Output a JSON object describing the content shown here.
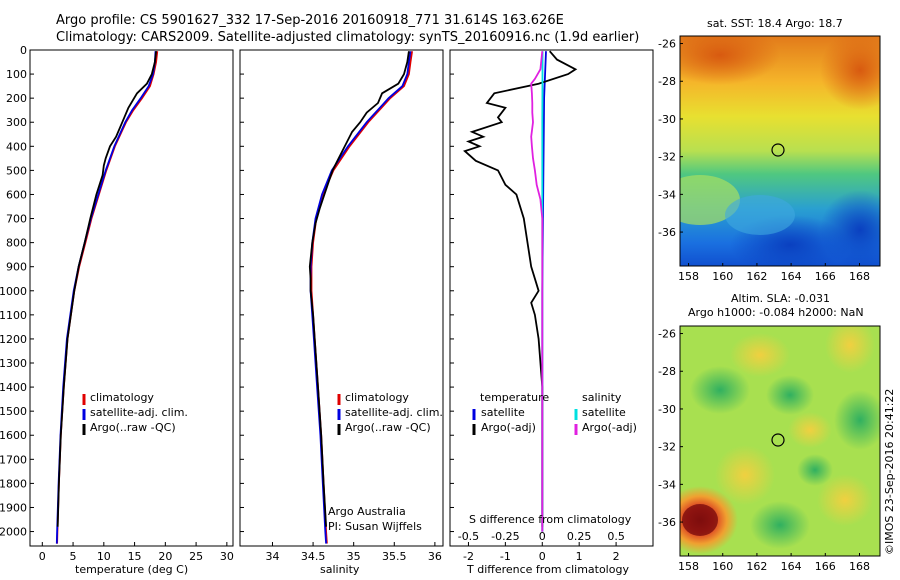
{
  "header": {
    "line1": "Argo profile: CS 5901627_332 17-Sep-2016 20160918_771 31.614S 163.626E",
    "line2": "Climatology: CARS2009. Satellite-adjusted climatology: synTS_20160916.nc (1.9d earlier)"
  },
  "credit": "©IMOS 23-Sep-2016 20:41:22",
  "colors": {
    "climatology": "#e00000",
    "satellite": "#0000e0",
    "argo": "#000000",
    "sal_satellite": "#00e0e0",
    "sal_argo": "#e020e0"
  },
  "chart_data": [
    {
      "type": "line",
      "xlabel": "temperature (deg C)",
      "ylabel": "",
      "xlim": [
        -2,
        31
      ],
      "ylim": [
        2060,
        0
      ],
      "xticks": [
        "0",
        "5",
        "10",
        "15",
        "20",
        "25",
        "30"
      ],
      "yticks": [
        "0",
        "100",
        "200",
        "300",
        "400",
        "500",
        "600",
        "700",
        "800",
        "900",
        "1000",
        "1100",
        "1200",
        "1300",
        "1400",
        "1500",
        "1600",
        "1700",
        "1800",
        "1900",
        "2000"
      ],
      "legend": [
        "climatology",
        "satellite-adj. clim.",
        "Argo(..raw -QC)"
      ],
      "series": [
        {
          "name": "climatology",
          "depth": [
            5,
            50,
            100,
            150,
            200,
            250,
            300,
            400,
            500,
            600,
            700,
            800,
            900,
            1000,
            1200,
            1400,
            1600,
            1800,
            2000,
            2050
          ],
          "values": [
            18.7,
            18.5,
            18.1,
            17.5,
            16.2,
            14.8,
            13.6,
            11.8,
            10.4,
            9.2,
            8.0,
            7.0,
            6.0,
            5.2,
            4.1,
            3.5,
            3.0,
            2.7,
            2.45,
            2.4
          ]
        },
        {
          "name": "satellite-adj. clim.",
          "depth": [
            5,
            50,
            100,
            150,
            200,
            250,
            300,
            400,
            500,
            600,
            700,
            800,
            900,
            1000,
            1200,
            1400,
            1600,
            1800,
            2000,
            2050
          ],
          "values": [
            18.4,
            18.3,
            18.0,
            17.3,
            16.0,
            14.6,
            13.5,
            11.7,
            10.3,
            9.1,
            7.9,
            6.9,
            5.9,
            5.1,
            4.0,
            3.4,
            2.95,
            2.65,
            2.4,
            2.35
          ]
        },
        {
          "name": "Argo(..raw -QC)",
          "depth": [
            5,
            50,
            100,
            140,
            180,
            240,
            300,
            360,
            400,
            450,
            480,
            520,
            600,
            700,
            800,
            900,
            1000,
            1200,
            1400,
            1600,
            1800,
            1980
          ],
          "values": [
            18.5,
            18.3,
            17.8,
            17.0,
            15.4,
            14.0,
            13.0,
            12.0,
            11.0,
            10.3,
            10.0,
            9.8,
            8.8,
            7.8,
            6.9,
            5.9,
            5.2,
            4.1,
            3.5,
            3.0,
            2.7,
            2.5
          ]
        }
      ]
    },
    {
      "type": "line",
      "xlabel": "salinity",
      "ylabel": "",
      "xlim": [
        33.6,
        36.1
      ],
      "ylim": [
        2060,
        0
      ],
      "xticks": [
        "34",
        "34.5",
        "35",
        "35.5",
        "36"
      ],
      "legend": [
        "climatology",
        "satellite-adj. clim.",
        "Argo(..raw -QC)"
      ],
      "annotation": [
        "Argo Australia",
        "PI: Susan Wijffels"
      ],
      "series": [
        {
          "name": "climatology",
          "depth": [
            5,
            50,
            100,
            150,
            200,
            300,
            400,
            500,
            600,
            700,
            800,
            900,
            1000,
            1200,
            1400,
            1600,
            1800,
            2000,
            2050
          ],
          "values": [
            35.72,
            35.7,
            35.68,
            35.62,
            35.45,
            35.18,
            34.95,
            34.75,
            34.62,
            34.54,
            34.5,
            34.48,
            34.48,
            34.52,
            34.56,
            34.6,
            34.63,
            34.66,
            34.67
          ]
        },
        {
          "name": "satellite-adj. clim.",
          "depth": [
            5,
            50,
            100,
            150,
            200,
            300,
            400,
            500,
            600,
            700,
            800,
            900,
            1000,
            1200,
            1400,
            1600,
            1800,
            2000,
            2050
          ],
          "values": [
            35.7,
            35.68,
            35.66,
            35.6,
            35.43,
            35.16,
            34.93,
            34.73,
            34.61,
            34.53,
            34.49,
            34.47,
            34.47,
            34.51,
            34.55,
            34.59,
            34.62,
            34.65,
            34.66
          ]
        },
        {
          "name": "Argo(..raw -QC)",
          "depth": [
            5,
            50,
            100,
            140,
            180,
            220,
            260,
            300,
            340,
            380,
            420,
            460,
            500,
            540,
            600,
            660,
            720,
            800,
            900,
            950,
            1000,
            1100,
            1200,
            1400,
            1600,
            1800,
            1980
          ],
          "values": [
            35.68,
            35.66,
            35.62,
            35.55,
            35.35,
            35.3,
            35.16,
            35.08,
            34.98,
            34.92,
            34.86,
            34.8,
            34.74,
            34.7,
            34.64,
            34.58,
            34.53,
            34.49,
            34.46,
            34.47,
            34.47,
            34.5,
            34.52,
            34.56,
            34.6,
            34.63,
            34.66
          ]
        }
      ]
    },
    {
      "type": "line",
      "xlabel": "T difference from climatology",
      "xlabel2": "S difference from climatology",
      "xlim": [
        -2.5,
        3.0
      ],
      "ylim": [
        2060,
        0
      ],
      "xticks": [
        "-2",
        "-1",
        "0",
        "1",
        "2"
      ],
      "xticks_top": [
        "-0.5",
        "-0.25",
        "0",
        "0.25",
        "0.5"
      ],
      "legend_left": {
        "title": "temperature",
        "items": [
          "satellite",
          "Argo(-adj)"
        ]
      },
      "legend_right": {
        "title": "salinity",
        "items": [
          "satellite",
          "Argo(-adj)"
        ]
      },
      "series": [
        {
          "name": "satellite",
          "variable": "temperature",
          "depth": [
            5,
            200,
            500,
            1000,
            1500,
            2000
          ],
          "values": [
            0.1,
            0.05,
            0.03,
            0.0,
            0.0,
            0.0
          ]
        },
        {
          "name": "Argo(-adj)",
          "variable": "temperature",
          "depth": [
            5,
            40,
            80,
            100,
            140,
            180,
            220,
            240,
            280,
            300,
            340,
            360,
            380,
            400,
            420,
            460,
            500,
            560,
            600,
            650,
            700,
            800,
            900,
            950,
            1000,
            1050,
            1100,
            1200,
            1400,
            1600,
            1800,
            1980
          ],
          "values": [
            0.2,
            0.4,
            0.9,
            0.7,
            -0.1,
            -1.3,
            -1.5,
            -1.0,
            -1.2,
            -1.1,
            -1.9,
            -1.6,
            -2.0,
            -1.7,
            -2.1,
            -1.8,
            -1.2,
            -1.0,
            -0.7,
            -0.6,
            -0.5,
            -0.4,
            -0.3,
            -0.2,
            -0.1,
            -0.3,
            -0.2,
            -0.1,
            0.0,
            0.0,
            0.0,
            0.0
          ]
        },
        {
          "name": "satellite",
          "variable": "salinity",
          "depth": [
            5,
            300,
            700,
            1000,
            1500,
            2000
          ],
          "values": [
            0.01,
            0.0,
            0.0,
            0.0,
            0.0,
            0.0
          ]
        },
        {
          "name": "Argo(-adj)",
          "variable": "salinity",
          "depth": [
            5,
            80,
            120,
            140,
            180,
            220,
            260,
            300,
            360,
            400,
            450,
            500,
            560,
            620,
            700,
            800,
            900,
            1000,
            1200,
            1600,
            2000
          ],
          "values": [
            0.0,
            -0.05,
            -0.2,
            -0.3,
            -0.28,
            -0.27,
            -0.27,
            -0.25,
            -0.3,
            -0.28,
            -0.25,
            -0.2,
            -0.15,
            -0.05,
            0.0,
            0.0,
            0.0,
            0.0,
            0.0,
            0.0,
            0.0
          ]
        }
      ]
    },
    {
      "type": "heatmap",
      "title": "sat. SST: 18.4  Argo: 18.7",
      "xlim": [
        157.5,
        169.2
      ],
      "ylim": [
        -37.8,
        -25.6
      ],
      "xticks": [
        "158",
        "160",
        "162",
        "164",
        "166",
        "168"
      ],
      "yticks": [
        "-26",
        "-28",
        "-30",
        "-32",
        "-34",
        "-36"
      ],
      "argo_position": {
        "lon": 163.6,
        "lat": -31.6
      }
    },
    {
      "type": "heatmap",
      "title_lines": [
        "Altim. SLA: -0.031",
        "Argo h1000: -0.084  h2000: NaN"
      ],
      "xlim": [
        157.5,
        169.2
      ],
      "ylim": [
        -37.8,
        -25.6
      ],
      "xticks": [
        "158",
        "160",
        "162",
        "164",
        "166",
        "168"
      ],
      "yticks": [
        "-26",
        "-28",
        "-30",
        "-32",
        "-34",
        "-36"
      ],
      "argo_position": {
        "lon": 163.6,
        "lat": -31.6
      }
    }
  ]
}
